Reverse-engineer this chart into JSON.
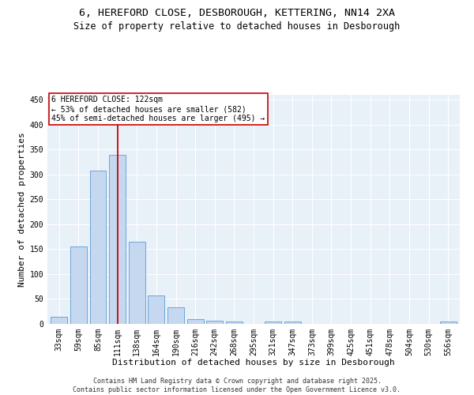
{
  "title_line1": "6, HEREFORD CLOSE, DESBOROUGH, KETTERING, NN14 2XA",
  "title_line2": "Size of property relative to detached houses in Desborough",
  "xlabel": "Distribution of detached houses by size in Desborough",
  "ylabel": "Number of detached properties",
  "categories": [
    "33sqm",
    "59sqm",
    "85sqm",
    "111sqm",
    "138sqm",
    "164sqm",
    "190sqm",
    "216sqm",
    "242sqm",
    "268sqm",
    "295sqm",
    "321sqm",
    "347sqm",
    "373sqm",
    "399sqm",
    "425sqm",
    "451sqm",
    "478sqm",
    "504sqm",
    "530sqm",
    "556sqm"
  ],
  "values": [
    15,
    155,
    308,
    340,
    165,
    57,
    33,
    10,
    7,
    5,
    0,
    5,
    5,
    0,
    0,
    0,
    0,
    0,
    0,
    0,
    5
  ],
  "bar_color": "#c5d8f0",
  "bar_edge_color": "#5b9bd5",
  "vline_x_index": 3,
  "vline_color": "#cc0000",
  "annotation_text": "6 HEREFORD CLOSE: 122sqm\n← 53% of detached houses are smaller (582)\n45% of semi-detached houses are larger (495) →",
  "annotation_box_color": "#ffffff",
  "annotation_box_edge": "#cc0000",
  "ylim": [
    0,
    460
  ],
  "yticks": [
    0,
    50,
    100,
    150,
    200,
    250,
    300,
    350,
    400,
    450
  ],
  "footer_line1": "Contains HM Land Registry data © Crown copyright and database right 2025.",
  "footer_line2": "Contains public sector information licensed under the Open Government Licence v3.0.",
  "bg_color": "#e8f0f8",
  "fig_bg_color": "#ffffff",
  "title_fontsize": 9.5,
  "subtitle_fontsize": 8.5,
  "axis_label_fontsize": 8,
  "tick_fontsize": 7,
  "footer_fontsize": 6,
  "annotation_fontsize": 7
}
